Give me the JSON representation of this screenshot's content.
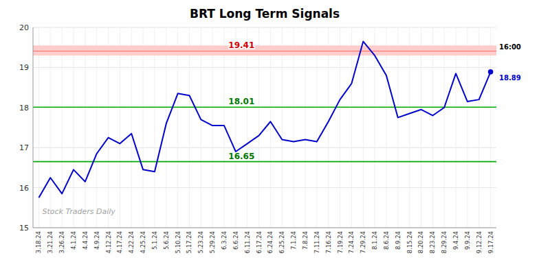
{
  "chart_data": {
    "type": "line",
    "title": "BRT Long Term Signals",
    "categories": [
      "3.18.24",
      "3.21.24",
      "3.26.24",
      "4.1.24",
      "4.4.24",
      "4.9.24",
      "4.12.24",
      "4.17.24",
      "4.22.24",
      "4.25.24",
      "5.1.24",
      "5.6.24",
      "5.10.24",
      "5.17.24",
      "5.23.24",
      "5.29.24",
      "6.3.24",
      "6.6.24",
      "6.11.24",
      "6.17.24",
      "6.24.24",
      "6.25.24",
      "7.1.24",
      "7.8.24",
      "7.11.24",
      "7.16.24",
      "7.19.24",
      "7.24.24",
      "7.29.24",
      "8.1.24",
      "8.6.24",
      "8.9.24",
      "8.15.24",
      "8.20.24",
      "8.23.24",
      "8.29.24",
      "9.4.24",
      "9.9.24",
      "9.12.24",
      "9.17.24"
    ],
    "values": [
      15.75,
      16.25,
      15.85,
      16.45,
      16.15,
      16.85,
      17.25,
      17.1,
      17.35,
      16.45,
      16.4,
      17.6,
      18.35,
      18.3,
      17.7,
      17.55,
      17.55,
      16.9,
      17.1,
      17.3,
      17.65,
      17.2,
      17.15,
      17.2,
      17.15,
      17.65,
      18.2,
      18.6,
      19.65,
      19.3,
      18.8,
      17.75,
      17.85,
      17.95,
      17.8,
      18.0,
      18.85,
      18.15,
      18.2,
      18.89
    ],
    "color": "#0000cc",
    "ylim": [
      15,
      20
    ],
    "yticks": [
      15,
      16,
      17,
      18,
      19,
      20
    ],
    "grid": true,
    "bands": [
      {
        "from": 19.3,
        "to": 19.55,
        "color": "#ffcccc"
      }
    ],
    "reference_lines": [
      {
        "value": 19.41,
        "label": "19.41",
        "color": "#ff6666",
        "label_color": "#cc0000"
      },
      {
        "value": 18.01,
        "label": "18.01",
        "color": "#00aa00",
        "label_color": "#007700"
      },
      {
        "value": 16.65,
        "label": "16.65",
        "color": "#00aa00",
        "label_color": "#007700"
      }
    ],
    "last_time": "16:00",
    "last_price": 18.89,
    "watermark": "Stock Traders Daily"
  }
}
